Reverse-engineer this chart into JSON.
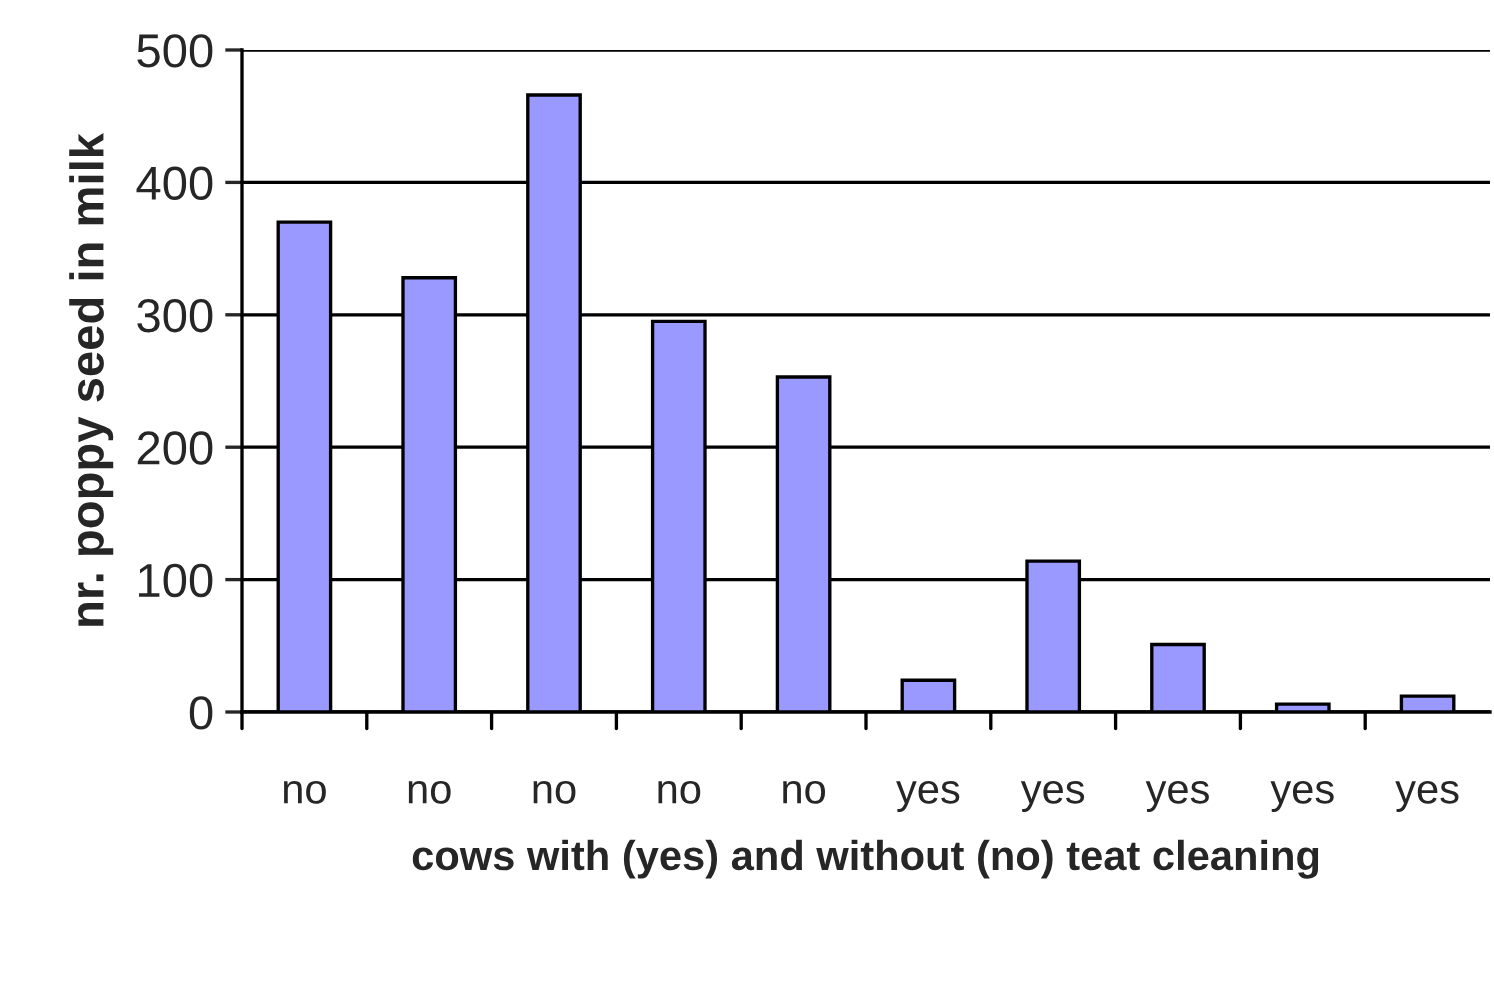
{
  "chart_data": {
    "type": "bar",
    "categories": [
      "no",
      "no",
      "no",
      "no",
      "no",
      "yes",
      "yes",
      "yes",
      "yes",
      "yes"
    ],
    "values": [
      370,
      328,
      466,
      295,
      253,
      24,
      114,
      51,
      6,
      12
    ],
    "color": "#9999ff",
    "xlabel": "cows with (yes) and without (no) teat cleaning",
    "ylabel": "nr. poppy seed in milk",
    "ylim": [
      0,
      500
    ],
    "yticks": [
      0,
      100,
      200,
      300,
      400,
      500
    ],
    "grid": "y"
  }
}
